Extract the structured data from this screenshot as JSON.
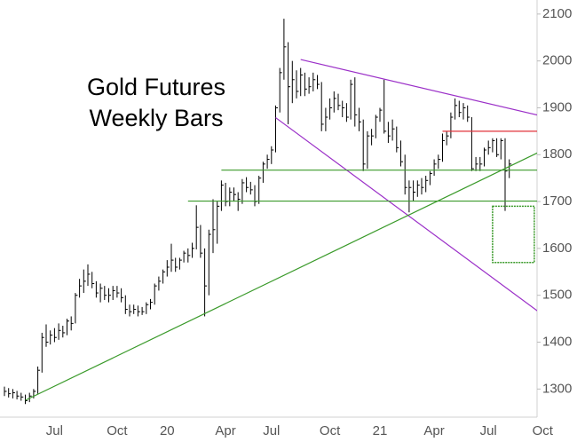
{
  "chart_data": {
    "type": "hlc",
    "title": "Gold Futures",
    "subtitle": "Weekly Bars",
    "color": "#000000",
    "categories": [
      null,
      null,
      null,
      null,
      null,
      null,
      null,
      null,
      null,
      null,
      null,
      null,
      "Jul",
      null,
      null,
      null,
      null,
      null,
      null,
      null,
      null,
      null,
      null,
      null,
      null,
      null,
      null,
      "Oct",
      null,
      null,
      null,
      null,
      null,
      null,
      null,
      null,
      null,
      null,
      null,
      "20",
      null,
      null,
      null,
      null,
      null,
      null,
      null,
      null,
      null,
      null,
      null,
      null,
      null,
      "Apr",
      null,
      null,
      null,
      null,
      null,
      null,
      null,
      null,
      null,
      null,
      "Jul",
      null,
      null,
      null,
      null,
      null,
      null,
      null,
      null,
      null,
      null,
      null,
      null,
      null,
      "Oct",
      null,
      null,
      null,
      null,
      null,
      null,
      null,
      null,
      null,
      null,
      null,
      "21",
      null,
      null,
      null,
      null,
      null,
      null,
      null,
      null,
      null,
      null,
      null,
      null,
      "Apr",
      null,
      null,
      null,
      null,
      null,
      null,
      null,
      null,
      null,
      null,
      null,
      null,
      "Jul",
      null,
      null,
      null,
      null,
      null,
      null,
      null,
      null,
      null,
      null,
      null,
      null,
      "Oct"
    ],
    "high": [
      1305,
      1302,
      1300,
      1296,
      1292,
      1288,
      1292,
      1300,
      1348,
      1420,
      1438,
      1425,
      1430,
      1440,
      1435,
      1450,
      1455,
      1505,
      1535,
      1555,
      1566,
      1550,
      1530,
      1525,
      1520,
      1515,
      1520,
      1520,
      1515,
      1500,
      1480,
      1480,
      1478,
      1475,
      1485,
      1492,
      1525,
      1540,
      1555,
      1575,
      1610,
      1580,
      1580,
      1595,
      1600,
      1612,
      1692,
      1650,
      1600,
      1640,
      1705,
      1700,
      1745,
      1740,
      1730,
      1730,
      1720,
      1748,
      1752,
      1742,
      1735,
      1755,
      1785,
      1800,
      1818,
      1905,
      1985,
      2090,
      2040,
      2000,
      1980,
      1985,
      1975,
      1965,
      1975,
      1970,
      1955,
      1900,
      1920,
      1935,
      1930,
      1915,
      1910,
      1960,
      1965,
      1900,
      1875,
      1850,
      1855,
      1885,
      1900,
      1960,
      1870,
      1875,
      1860,
      1830,
      1800,
      1745,
      1745,
      1745,
      1750,
      1755,
      1765,
      1790,
      1800,
      1845,
      1850,
      1890,
      1920,
      1915,
      1910,
      1905,
      1880,
      1795,
      1795,
      1815,
      1830,
      1835,
      1835,
      1835,
      1835,
      1790,
      null,
      null,
      null,
      null,
      null,
      null,
      null,
      null
    ],
    "low": [
      1285,
      1282,
      1280,
      1278,
      1275,
      1268,
      1272,
      1280,
      1290,
      1335,
      1390,
      1395,
      1400,
      1405,
      1410,
      1415,
      1425,
      1440,
      1495,
      1505,
      1520,
      1515,
      1495,
      1485,
      1490,
      1485,
      1490,
      1495,
      1485,
      1460,
      1455,
      1460,
      1455,
      1458,
      1460,
      1470,
      1480,
      1510,
      1525,
      1540,
      1550,
      1550,
      1555,
      1570,
      1570,
      1580,
      1598,
      1580,
      1455,
      1500,
      1590,
      1610,
      1680,
      1690,
      1690,
      1700,
      1680,
      1695,
      1720,
      1715,
      1690,
      1695,
      1740,
      1770,
      1780,
      1805,
      1890,
      1960,
      1865,
      1910,
      1920,
      1925,
      1925,
      1930,
      1935,
      1940,
      1850,
      1850,
      1875,
      1890,
      1895,
      1880,
      1870,
      1875,
      1860,
      1850,
      1765,
      1770,
      1820,
      1835,
      1870,
      1845,
      1825,
      1830,
      1805,
      1775,
      1715,
      1677,
      1700,
      1710,
      1715,
      1720,
      1735,
      1755,
      1770,
      1785,
      1820,
      1835,
      1875,
      1880,
      1875,
      1870,
      1765,
      1765,
      1765,
      1775,
      1800,
      1805,
      1795,
      1790,
      1680,
      1750,
      null,
      null,
      null,
      null,
      null,
      null,
      null,
      null
    ],
    "close": [
      1295,
      1290,
      1292,
      1285,
      1283,
      1275,
      1285,
      1295,
      1340,
      1410,
      1400,
      1415,
      1410,
      1425,
      1420,
      1445,
      1440,
      1500,
      1520,
      1530,
      1545,
      1525,
      1505,
      1515,
      1500,
      1500,
      1510,
      1505,
      1495,
      1470,
      1465,
      1470,
      1465,
      1465,
      1480,
      1485,
      1520,
      1530,
      1550,
      1560,
      1575,
      1560,
      1575,
      1590,
      1585,
      1600,
      1645,
      1590,
      1520,
      1630,
      1640,
      1690,
      1735,
      1700,
      1720,
      1715,
      1705,
      1740,
      1730,
      1725,
      1700,
      1750,
      1780,
      1790,
      1810,
      1900,
      1975,
      2030,
      1945,
      1960,
      1935,
      1970,
      1940,
      1945,
      1960,
      1950,
      1865,
      1880,
      1900,
      1920,
      1905,
      1900,
      1880,
      1950,
      1885,
      1870,
      1780,
      1840,
      1840,
      1880,
      1895,
      1850,
      1840,
      1855,
      1815,
      1785,
      1730,
      1730,
      1720,
      1735,
      1730,
      1745,
      1760,
      1780,
      1790,
      1830,
      1840,
      1880,
      1905,
      1890,
      1900,
      1880,
      1770,
      1780,
      1780,
      1810,
      1815,
      1830,
      1800,
      1830,
      1765,
      1780,
      null,
      null,
      null,
      null,
      null,
      null,
      null,
      null
    ],
    "ylim": [
      1240,
      2130
    ],
    "yticks": [
      1300,
      1400,
      1500,
      1600,
      1700,
      1800,
      1900,
      2000,
      2100
    ],
    "trendlines": [
      {
        "color": "#9b30c8",
        "points": [
          [
            71,
            2003
          ],
          [
            128,
            1884
          ]
        ]
      },
      {
        "color": "#9b30c8",
        "points": [
          [
            65,
            1879
          ],
          [
            128,
            1465
          ]
        ]
      },
      {
        "color": "#3a9a2a",
        "points": [
          [
            5,
            1276
          ],
          [
            128,
            1805
          ]
        ]
      },
      {
        "color": "#3a9a2a",
        "points": [
          [
            52,
            1767
          ],
          [
            128,
            1767
          ]
        ]
      },
      {
        "color": "#3a9a2a",
        "points": [
          [
            44,
            1701
          ],
          [
            128,
            1701
          ]
        ]
      },
      {
        "color": "#e0323a",
        "points": [
          [
            105,
            1850
          ],
          [
            128,
            1850
          ]
        ]
      }
    ],
    "target_box": {
      "color": "#3a9a2a",
      "x": [
        117,
        127
      ],
      "y": [
        1570,
        1690
      ]
    }
  }
}
